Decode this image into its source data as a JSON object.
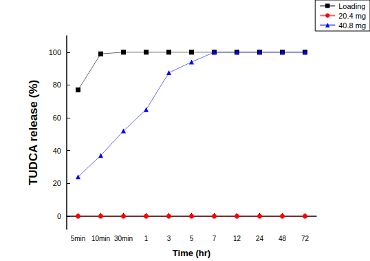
{
  "chart_data": {
    "type": "line",
    "x_label": "Time (hr)",
    "y_label": "TUDCA release (%)",
    "categories": [
      "5min",
      "10min",
      "30min",
      "1",
      "3",
      "5",
      "7",
      "12",
      "24",
      "48",
      "72"
    ],
    "series": [
      {
        "name": "Loading",
        "color": "#000000",
        "marker": "square",
        "values": [
          77,
          99,
          100,
          100,
          100,
          100,
          100,
          100,
          100,
          100,
          100
        ]
      },
      {
        "name": "20.4 mg",
        "color": "#ff0000",
        "marker": "circle",
        "values": [
          0,
          0,
          0,
          0,
          0,
          0,
          0,
          0,
          0,
          0,
          0
        ]
      },
      {
        "name": "40.8 mg",
        "color": "#0000ff",
        "marker": "triangle",
        "values": [
          24,
          37,
          52,
          65,
          87.5,
          94,
          100,
          100,
          100,
          100,
          100
        ]
      }
    ],
    "ylim": [
      -8,
      110
    ],
    "yticks": [
      0,
      20,
      40,
      60,
      80,
      100
    ],
    "legend": "top-right",
    "grid": false
  }
}
